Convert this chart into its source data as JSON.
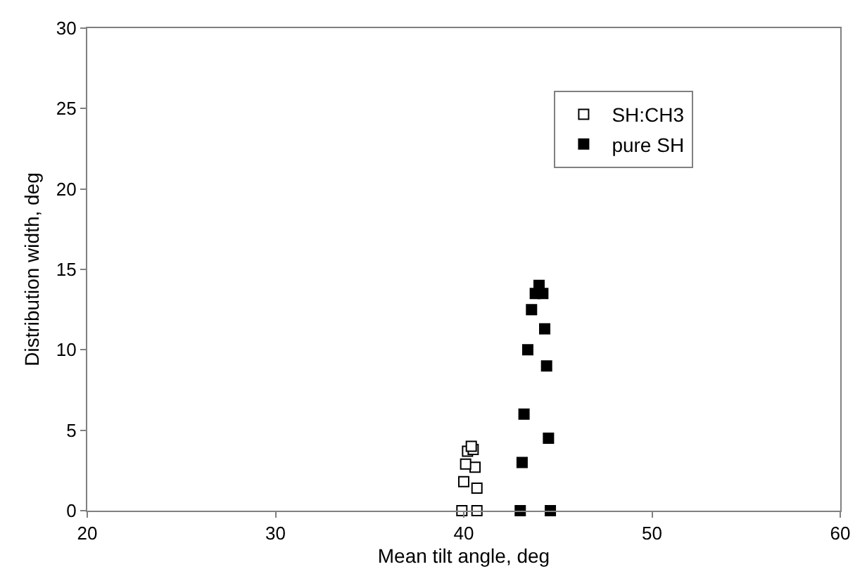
{
  "chart_data": {
    "type": "scatter",
    "xlabel": "Mean tilt angle, deg",
    "ylabel": "Distribution width, deg",
    "xlim": [
      20,
      60
    ],
    "xticks": [
      20,
      30,
      40,
      50,
      60
    ],
    "ylim": [
      0,
      30
    ],
    "yticks": [
      0,
      5,
      10,
      15,
      20,
      25,
      30
    ],
    "legend": "top right",
    "marker": "square",
    "series": [
      {
        "name": "SH:CH3",
        "color": "#ffffff",
        "x": [
          39.9,
          40.7,
          40.7,
          40.0,
          40.6,
          40.1,
          40.2,
          40.5,
          40.4
        ],
        "values": [
          0,
          0,
          1.4,
          1.8,
          2.7,
          2.9,
          3.7,
          3.8,
          4.0
        ]
      },
      {
        "name": "pure SH",
        "color": "#000000",
        "x": [
          43.0,
          44.6,
          43.1,
          44.5,
          43.2,
          44.4,
          43.4,
          44.3,
          43.6,
          43.8,
          44.2,
          44.0
        ],
        "values": [
          0,
          0,
          3.0,
          4.5,
          6.0,
          9.0,
          10.0,
          11.3,
          12.5,
          13.5,
          13.5,
          14.0
        ]
      }
    ]
  }
}
